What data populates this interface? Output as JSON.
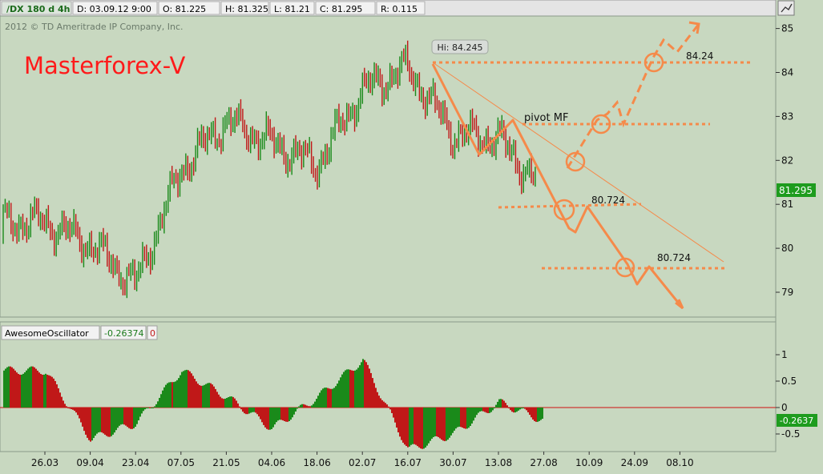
{
  "header": {
    "symbol": "/DX 180 d 4h",
    "date": "D: 03.09.12 9:00",
    "open": "O: 81.225",
    "high": "H: 81.325",
    "low": "L: 81.21",
    "close": "C: 81.295",
    "range": "R: 0.115"
  },
  "copyright": "2012 © TD Ameritrade IP Company, Inc.",
  "brand": "Masterforex-V",
  "colors": {
    "background": "#c8d8c0",
    "up": "#1a8a1a",
    "down": "#c01818",
    "annotation": "#f58a4a",
    "brand": "#ff1a1a",
    "price_badge": "#1e9c1e"
  },
  "chart_data": [
    {
      "type": "line",
      "title": "",
      "series": [
        {
          "name": "",
          "x": [
            "26.03",
            "09.04",
            "23.04",
            "07.05",
            "21.05",
            "04.06",
            "18.06",
            "02.07",
            "16.07",
            "30.07",
            "13.08",
            "27.08"
          ],
          "values": [
            80.6,
            80.1,
            79.2,
            81.8,
            82.9,
            82.4,
            81.9,
            83.6,
            84.1,
            82.6,
            82.5,
            81.3
          ]
        }
      ],
      "x_ticks": [
        "26.03",
        "09.04",
        "23.04",
        "07.05",
        "21.05",
        "04.06",
        "18.06",
        "02.07",
        "16.07",
        "30.07",
        "13.08",
        "27.08",
        "10.09",
        "24.09",
        "08.10"
      ],
      "y_ticks": [
        "79",
        "80",
        "81",
        "82",
        "83",
        "84",
        "85"
      ],
      "ylim": [
        78.4,
        85.4
      ],
      "last_price": "81.295",
      "annotations": {
        "hi_label": "Hi: 84.245",
        "pivot_label": "pivot MF",
        "level_upper": "84.24",
        "level_mid": "80.724",
        "level_low": "80.724"
      }
    },
    {
      "type": "bar",
      "title": "",
      "indicator_name": "AwesomeOscillator",
      "indicator_value": "-0.26374",
      "indicator_param": "0",
      "x": [
        "26.03",
        "09.04",
        "23.04",
        "07.05",
        "21.05",
        "04.06",
        "18.06",
        "02.07",
        "16.07",
        "30.07",
        "13.08",
        "27.08"
      ],
      "values": [
        0.7,
        -0.6,
        -0.3,
        0.7,
        0.2,
        -0.4,
        0.2,
        0.9,
        -0.8,
        -0.5,
        0.1,
        -0.26
      ],
      "y_ticks": [
        "1",
        "0.5",
        "0",
        "-0.5"
      ],
      "ylim": [
        -0.95,
        1.3
      ],
      "last_value": "-0.2637"
    }
  ]
}
